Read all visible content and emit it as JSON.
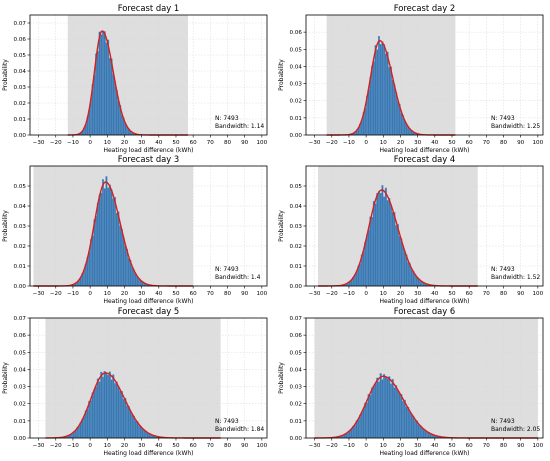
{
  "chart_data": [
    {
      "type": "histogram",
      "title": "Forecast day 1",
      "xlabel": "Heating load difference (kWh)",
      "ylabel": "Probability",
      "xlim": [
        -35,
        103
      ],
      "ylim": [
        0,
        0.075
      ],
      "xticks": [
        -30,
        -20,
        -10,
        0,
        10,
        20,
        30,
        40,
        50,
        60,
        70,
        80,
        90,
        100
      ],
      "yticks": [
        0.0,
        0.01,
        0.02,
        0.03,
        0.04,
        0.05,
        0.06,
        0.07
      ],
      "shaded_range": [
        -13,
        57
      ],
      "distribution": {
        "peak_x": 7,
        "peak_y": 0.065,
        "sigma_left": 4.5,
        "sigma_right": 6.5
      },
      "n": "N: 7493",
      "bandwidth": "Bandwidth: 1.14",
      "grid": true
    },
    {
      "type": "histogram",
      "title": "Forecast day 2",
      "xlabel": "Heating load difference (kWh)",
      "ylabel": "Probability",
      "xlim": [
        -35,
        103
      ],
      "ylim": [
        0,
        0.07
      ],
      "xticks": [
        -30,
        -20,
        -10,
        0,
        10,
        20,
        30,
        40,
        50,
        60,
        70,
        80,
        90,
        100
      ],
      "yticks": [
        0.0,
        0.01,
        0.02,
        0.03,
        0.04,
        0.05,
        0.06
      ],
      "shaded_range": [
        -23,
        52
      ],
      "distribution": {
        "peak_x": 8,
        "peak_y": 0.055,
        "sigma_left": 5.5,
        "sigma_right": 7.5
      },
      "n": "N: 7493",
      "bandwidth": "Bandwidth: 1.25",
      "grid": true
    },
    {
      "type": "histogram",
      "title": "Forecast day 3",
      "xlabel": "Heating load difference (kWh)",
      "ylabel": "Probability",
      "xlim": [
        -35,
        103
      ],
      "ylim": [
        0,
        0.06
      ],
      "xticks": [
        -30,
        -20,
        -10,
        0,
        10,
        20,
        30,
        40,
        50,
        60,
        70,
        80,
        90,
        100
      ],
      "yticks": [
        0.0,
        0.01,
        0.02,
        0.03,
        0.04,
        0.05
      ],
      "shaded_range": [
        -33,
        60
      ],
      "distribution": {
        "peak_x": 9,
        "peak_y": 0.052,
        "sigma_left": 6.5,
        "sigma_right": 8.5
      },
      "n": "N: 7493",
      "bandwidth": "Bandwidth: 1.4",
      "grid": true
    },
    {
      "type": "histogram",
      "title": "Forecast day 4",
      "xlabel": "Heating load difference (kWh)",
      "ylabel": "Probability",
      "xlim": [
        -35,
        103
      ],
      "ylim": [
        0,
        0.06
      ],
      "xticks": [
        -30,
        -20,
        -10,
        0,
        10,
        20,
        30,
        40,
        50,
        60,
        70,
        80,
        90,
        100
      ],
      "yticks": [
        0.0,
        0.01,
        0.02,
        0.03,
        0.04,
        0.05
      ],
      "shaded_range": [
        -28,
        65
      ],
      "distribution": {
        "peak_x": 9,
        "peak_y": 0.048,
        "sigma_left": 7.5,
        "sigma_right": 9.5
      },
      "n": "N: 7493",
      "bandwidth": "Bandwidth: 1.52",
      "grid": true
    },
    {
      "type": "histogram",
      "title": "Forecast day 5",
      "xlabel": "Heating load difference (kWh)",
      "ylabel": "Probability",
      "xlim": [
        -35,
        103
      ],
      "ylim": [
        0,
        0.07
      ],
      "xticks": [
        -30,
        -20,
        -10,
        0,
        10,
        20,
        30,
        40,
        50,
        60,
        70,
        80,
        90,
        100
      ],
      "yticks": [
        0.0,
        0.01,
        0.02,
        0.03,
        0.04,
        0.05,
        0.06,
        0.07
      ],
      "shaded_range": [
        -26,
        76
      ],
      "distribution": {
        "peak_x": 9,
        "peak_y": 0.038,
        "sigma_left": 8.5,
        "sigma_right": 11
      },
      "n": "N: 7493",
      "bandwidth": "Bandwidth: 1.84",
      "grid": true
    },
    {
      "type": "histogram",
      "title": "Forecast day 6",
      "xlabel": "Heating load difference (kWh)",
      "ylabel": "Probability",
      "xlim": [
        -35,
        103
      ],
      "ylim": [
        0,
        0.07
      ],
      "xticks": [
        -30,
        -20,
        -10,
        0,
        10,
        20,
        30,
        40,
        50,
        60,
        70,
        80,
        90,
        100
      ],
      "yticks": [
        0.0,
        0.01,
        0.02,
        0.03,
        0.04,
        0.05,
        0.06,
        0.07
      ],
      "shaded_range": [
        -30,
        100
      ],
      "distribution": {
        "peak_x": 10,
        "peak_y": 0.036,
        "sigma_left": 9.5,
        "sigma_right": 12
      },
      "n": "N: 7493",
      "bandwidth": "Bandwidth: 2.05",
      "grid": true
    }
  ]
}
